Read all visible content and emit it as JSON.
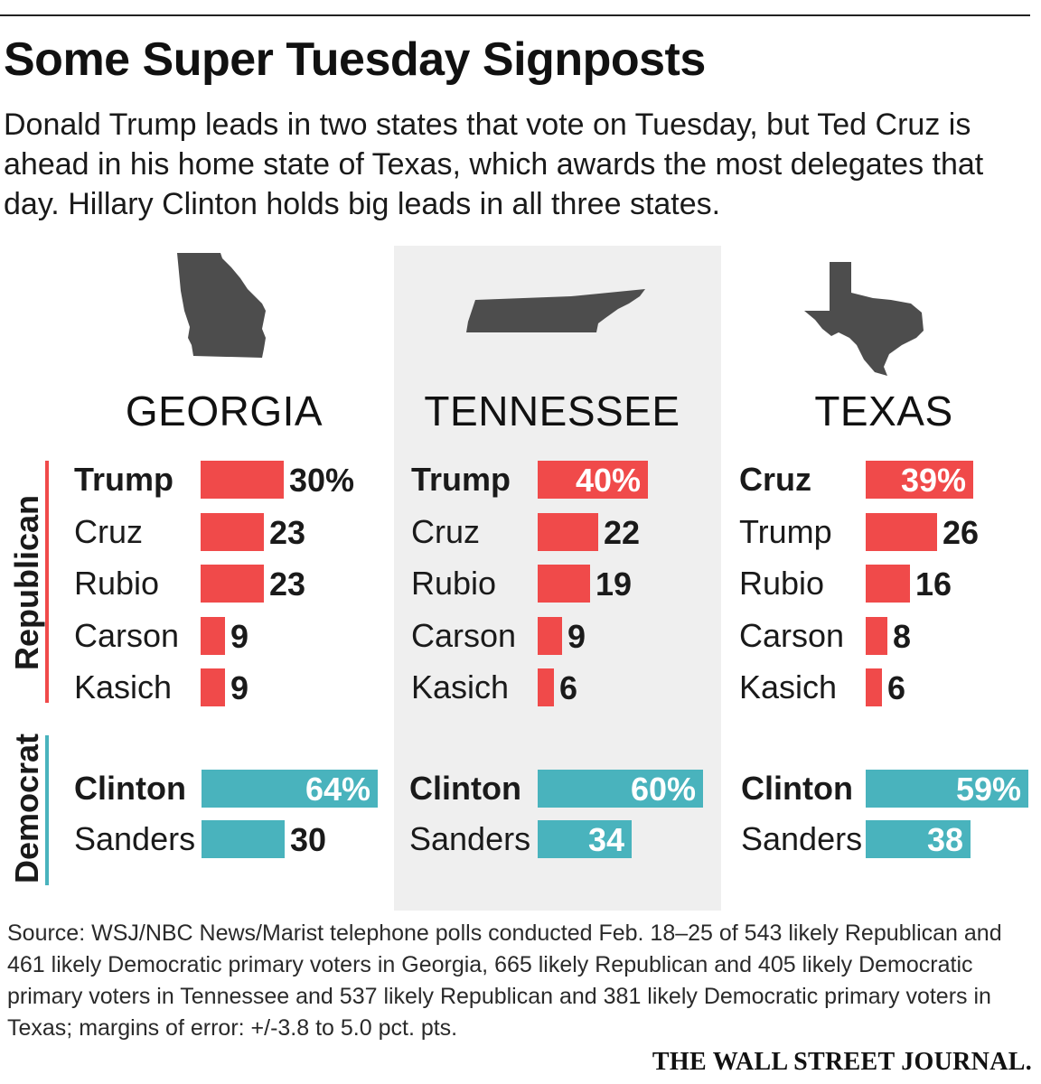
{
  "header": {
    "title": "Some Super Tuesday Signposts",
    "subtitle": "Donald Trump leads in two states that vote on Tuesday, but Ted Cruz is ahead in his home state of Texas, which awards the most delegates that day. Hillary Clinton holds big leads in all three states."
  },
  "party_labels": {
    "republican": "Republican",
    "democrat": "Democrat"
  },
  "colors": {
    "republican": "#f04a4a",
    "democrat": "#49b3bd",
    "shape": "#4d4d4d",
    "highlight_panel": "#efefef"
  },
  "chart_data": [
    {
      "type": "bar",
      "state": "GEORGIA",
      "republican": {
        "categories": [
          "Trump",
          "Cruz",
          "Rubio",
          "Carson",
          "Kasich"
        ],
        "values": [
          30,
          23,
          23,
          9,
          9
        ],
        "labels": [
          "30%",
          "23",
          "23",
          "9",
          "9"
        ]
      },
      "democrat": {
        "categories": [
          "Clinton",
          "Sanders"
        ],
        "values": [
          64,
          30
        ],
        "labels": [
          "64%",
          "30"
        ]
      }
    },
    {
      "type": "bar",
      "state": "TENNESSEE",
      "republican": {
        "categories": [
          "Trump",
          "Cruz",
          "Rubio",
          "Carson",
          "Kasich"
        ],
        "values": [
          40,
          22,
          19,
          9,
          6
        ],
        "labels": [
          "40%",
          "22",
          "19",
          "9",
          "6"
        ]
      },
      "democrat": {
        "categories": [
          "Clinton",
          "Sanders"
        ],
        "values": [
          60,
          34
        ],
        "labels": [
          "60%",
          "34"
        ]
      }
    },
    {
      "type": "bar",
      "state": "TEXAS",
      "republican": {
        "categories": [
          "Cruz",
          "Trump",
          "Rubio",
          "Carson",
          "Kasich"
        ],
        "values": [
          39,
          26,
          16,
          8,
          6
        ],
        "labels": [
          "39%",
          "26",
          "16",
          "8",
          "6"
        ]
      },
      "democrat": {
        "categories": [
          "Clinton",
          "Sanders"
        ],
        "values": [
          59,
          38
        ],
        "labels": [
          "59%",
          "38"
        ]
      }
    }
  ],
  "footer": {
    "source": "Source: WSJ/NBC News/Marist telephone polls conducted Feb. 18–25 of 543 likely Republican and 461 likely Democratic primary voters in Georgia, 665 likely Republican and 405 likely Democratic primary voters in Tennessee and 537 likely Republican and 381 likely Democratic primary voters in Texas; margins of error: +/-3.8 to 5.0 pct. pts.",
    "brand": "THE WALL STREET JOURNAL."
  }
}
